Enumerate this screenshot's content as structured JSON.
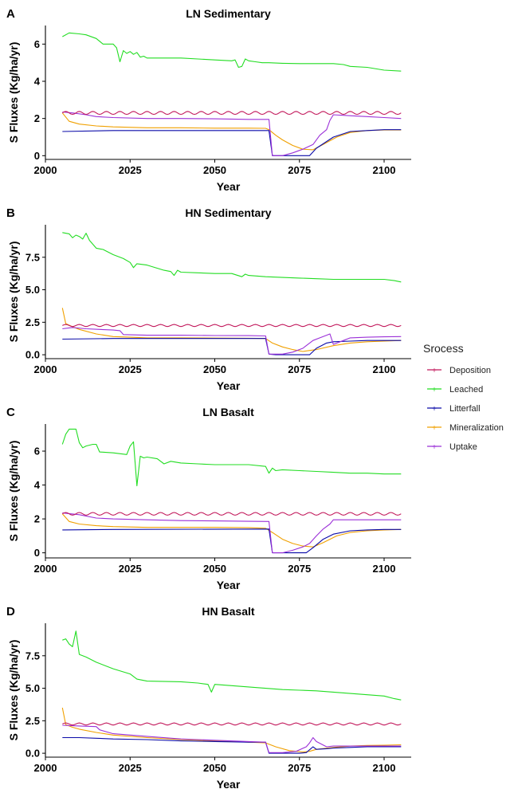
{
  "legend": {
    "title": "Srocess",
    "items": [
      {
        "name": "Deposition",
        "color": "#c2185b"
      },
      {
        "name": "Leached",
        "color": "#22dd22"
      },
      {
        "name": "Litterfall",
        "color": "#0a0aa8"
      },
      {
        "name": "Mineralization",
        "color": "#f0a000"
      },
      {
        "name": "Uptake",
        "color": "#9b30d8"
      }
    ]
  },
  "chart_data": [
    {
      "type": "line",
      "panel": "A",
      "title": "LN Sedimentary",
      "xlabel": "Year",
      "ylabel": "S Fluxes (Kg/ha/yr)",
      "xlim": [
        2000,
        2108
      ],
      "ylim": [
        -0.2,
        7.0
      ],
      "xticks": [
        2000,
        2025,
        2050,
        2075,
        2100
      ],
      "yticks": [
        0,
        2,
        4,
        6
      ],
      "ytick_labels": [
        "0",
        "2",
        "4",
        "6"
      ],
      "series": [
        {
          "name": "Deposition",
          "x": [
            2005,
            2105
          ],
          "y": [
            2.3,
            2.3
          ],
          "wiggle": 0.08
        },
        {
          "name": "Leached",
          "x": [
            2005,
            2007,
            2010,
            2012,
            2015,
            2017,
            2020,
            2021,
            2022,
            2023,
            2024,
            2025,
            2026,
            2027,
            2028,
            2029,
            2030,
            2033,
            2036,
            2040,
            2045,
            2050,
            2055,
            2056,
            2057,
            2058,
            2059,
            2060,
            2062,
            2064,
            2066,
            2068,
            2070,
            2075,
            2080,
            2085,
            2088,
            2090,
            2095,
            2100,
            2105
          ],
          "y": [
            6.4,
            6.6,
            6.55,
            6.5,
            6.3,
            6.0,
            6.0,
            5.8,
            5.05,
            5.65,
            5.5,
            5.6,
            5.45,
            5.55,
            5.3,
            5.35,
            5.25,
            5.25,
            5.25,
            5.25,
            5.2,
            5.15,
            5.1,
            5.15,
            4.75,
            4.8,
            5.2,
            5.1,
            5.05,
            5.0,
            5.0,
            4.98,
            4.97,
            4.95,
            4.95,
            4.95,
            4.9,
            4.8,
            4.75,
            4.6,
            4.55
          ]
        },
        {
          "name": "Litterfall",
          "x": [
            2005,
            2020,
            2066,
            2067,
            2078,
            2080,
            2085,
            2090,
            2095,
            2100,
            2105
          ],
          "y": [
            1.3,
            1.35,
            1.35,
            0.0,
            0.0,
            0.4,
            1.0,
            1.3,
            1.35,
            1.4,
            1.4
          ]
        },
        {
          "name": "Mineralization",
          "x": [
            2005,
            2007,
            2010,
            2015,
            2020,
            2030,
            2040,
            2050,
            2060,
            2065,
            2066,
            2068,
            2070,
            2073,
            2076,
            2079,
            2082,
            2086,
            2090,
            2095,
            2100,
            2105
          ],
          "y": [
            2.3,
            1.85,
            1.7,
            1.6,
            1.55,
            1.5,
            1.5,
            1.48,
            1.48,
            1.47,
            1.4,
            1.1,
            0.85,
            0.55,
            0.35,
            0.32,
            0.6,
            1.0,
            1.25,
            1.35,
            1.38,
            1.38
          ]
        },
        {
          "name": "Uptake",
          "x": [
            2005,
            2008,
            2012,
            2015,
            2020,
            2030,
            2040,
            2050,
            2060,
            2066,
            2067,
            2070,
            2073,
            2076,
            2079,
            2081,
            2083,
            2084,
            2085,
            2090,
            2095,
            2100,
            2105
          ],
          "y": [
            2.35,
            2.3,
            2.2,
            2.1,
            2.05,
            2.0,
            2.0,
            1.98,
            1.95,
            1.95,
            0.0,
            0.0,
            0.15,
            0.35,
            0.6,
            1.1,
            1.4,
            1.9,
            2.2,
            2.15,
            2.1,
            2.05,
            2.0
          ]
        }
      ]
    },
    {
      "type": "line",
      "panel": "B",
      "title": "HN Sedimentary",
      "xlabel": "Year",
      "ylabel": "S Fluxes (Kg/ha/yr)",
      "xlim": [
        2000,
        2108
      ],
      "ylim": [
        -0.3,
        10.0
      ],
      "xticks": [
        2000,
        2025,
        2050,
        2075,
        2100
      ],
      "yticks": [
        0,
        2.5,
        5,
        7.5
      ],
      "ytick_labels": [
        "0.0",
        "2.5",
        "5.0",
        "7.5"
      ],
      "series": [
        {
          "name": "Deposition",
          "x": [
            2005,
            2105
          ],
          "y": [
            2.25,
            2.25
          ],
          "wiggle": 0.08
        },
        {
          "name": "Leached",
          "x": [
            2005,
            2007,
            2008,
            2009,
            2010,
            2011,
            2012,
            2013,
            2015,
            2017,
            2020,
            2023,
            2025,
            2026,
            2027,
            2030,
            2035,
            2037,
            2038,
            2039,
            2040,
            2045,
            2050,
            2055,
            2058,
            2059,
            2060,
            2065,
            2070,
            2075,
            2080,
            2085,
            2090,
            2095,
            2100,
            2103,
            2105
          ],
          "y": [
            9.4,
            9.3,
            9.0,
            9.2,
            9.1,
            8.9,
            9.35,
            8.8,
            8.2,
            8.1,
            7.7,
            7.4,
            7.1,
            6.7,
            7.0,
            6.9,
            6.5,
            6.4,
            6.1,
            6.5,
            6.35,
            6.3,
            6.25,
            6.25,
            6.0,
            6.2,
            6.1,
            6.0,
            5.95,
            5.9,
            5.85,
            5.8,
            5.8,
            5.8,
            5.8,
            5.7,
            5.6
          ]
        },
        {
          "name": "Litterfall",
          "x": [
            2005,
            2020,
            2065,
            2066,
            2068,
            2078,
            2080,
            2083,
            2085,
            2090,
            2095,
            2100,
            2105
          ],
          "y": [
            1.2,
            1.25,
            1.25,
            0.05,
            0.0,
            0.0,
            0.5,
            0.9,
            1.0,
            1.05,
            1.1,
            1.1,
            1.1
          ]
        },
        {
          "name": "Mineralization",
          "x": [
            2005,
            2006,
            2008,
            2010,
            2015,
            2020,
            2025,
            2030,
            2040,
            2050,
            2060,
            2065,
            2067,
            2070,
            2073,
            2076,
            2080,
            2085,
            2090,
            2095,
            2100,
            2105
          ],
          "y": [
            3.6,
            2.4,
            2.15,
            1.95,
            1.6,
            1.4,
            1.35,
            1.3,
            1.3,
            1.28,
            1.27,
            1.25,
            0.9,
            0.6,
            0.4,
            0.25,
            0.4,
            0.7,
            0.9,
            1.0,
            1.05,
            1.1
          ]
        },
        {
          "name": "Uptake",
          "x": [
            2005,
            2008,
            2012,
            2016,
            2020,
            2022,
            2023,
            2030,
            2040,
            2050,
            2060,
            2065,
            2066,
            2070,
            2073,
            2076,
            2079,
            2081,
            2083,
            2084,
            2085,
            2088,
            2090,
            2095,
            2100,
            2105
          ],
          "y": [
            2.0,
            2.1,
            2.0,
            1.95,
            1.9,
            1.85,
            1.55,
            1.5,
            1.5,
            1.48,
            1.47,
            1.45,
            0.05,
            0.05,
            0.2,
            0.5,
            1.1,
            1.3,
            1.5,
            1.6,
            0.8,
            1.1,
            1.3,
            1.35,
            1.38,
            1.4
          ]
        }
      ]
    },
    {
      "type": "line",
      "panel": "C",
      "title": "LN Basalt",
      "xlabel": "Year",
      "ylabel": "S Fluxes (Kg/ha/yr)",
      "xlim": [
        2000,
        2108
      ],
      "ylim": [
        -0.3,
        7.6
      ],
      "xticks": [
        2000,
        2025,
        2050,
        2075,
        2100
      ],
      "yticks": [
        0,
        2,
        4,
        6
      ],
      "ytick_labels": [
        "0",
        "2",
        "4",
        "6"
      ],
      "series": [
        {
          "name": "Deposition",
          "x": [
            2005,
            2105
          ],
          "y": [
            2.3,
            2.3
          ],
          "wiggle": 0.08
        },
        {
          "name": "Leached",
          "x": [
            2005,
            2006,
            2007,
            2009,
            2010,
            2011,
            2012,
            2014,
            2015,
            2016,
            2020,
            2024,
            2025,
            2026,
            2027,
            2028,
            2029,
            2030,
            2033,
            2035,
            2037,
            2040,
            2045,
            2050,
            2055,
            2060,
            2065,
            2066,
            2067,
            2068,
            2070,
            2075,
            2080,
            2085,
            2090,
            2095,
            2100,
            2105
          ],
          "y": [
            6.4,
            7.0,
            7.3,
            7.3,
            6.5,
            6.2,
            6.3,
            6.4,
            6.4,
            5.95,
            5.9,
            5.8,
            6.3,
            6.55,
            3.95,
            5.7,
            5.6,
            5.65,
            5.55,
            5.25,
            5.4,
            5.3,
            5.25,
            5.2,
            5.2,
            5.2,
            5.1,
            4.7,
            5.0,
            4.85,
            4.9,
            4.85,
            4.8,
            4.75,
            4.7,
            4.7,
            4.65,
            4.65
          ]
        },
        {
          "name": "Litterfall",
          "x": [
            2005,
            2020,
            2066,
            2067,
            2077,
            2079,
            2082,
            2085,
            2090,
            2095,
            2100,
            2105
          ],
          "y": [
            1.35,
            1.38,
            1.4,
            0.0,
            0.0,
            0.3,
            0.8,
            1.1,
            1.3,
            1.35,
            1.38,
            1.38
          ]
        },
        {
          "name": "Mineralization",
          "x": [
            2005,
            2007,
            2010,
            2015,
            2020,
            2030,
            2040,
            2050,
            2060,
            2065,
            2067,
            2070,
            2073,
            2076,
            2079,
            2082,
            2086,
            2090,
            2095,
            2100,
            2105
          ],
          "y": [
            2.3,
            1.85,
            1.7,
            1.6,
            1.55,
            1.5,
            1.5,
            1.5,
            1.48,
            1.45,
            1.2,
            0.8,
            0.55,
            0.4,
            0.35,
            0.6,
            1.0,
            1.2,
            1.3,
            1.35,
            1.38
          ]
        },
        {
          "name": "Uptake",
          "x": [
            2005,
            2010,
            2015,
            2020,
            2030,
            2040,
            2050,
            2060,
            2066,
            2067,
            2070,
            2073,
            2076,
            2078,
            2080,
            2082,
            2084,
            2085,
            2090,
            2095,
            2100,
            2105
          ],
          "y": [
            2.35,
            2.25,
            2.05,
            2.0,
            1.95,
            1.9,
            1.88,
            1.86,
            1.85,
            0.0,
            0.0,
            0.15,
            0.35,
            0.55,
            1.0,
            1.4,
            1.7,
            1.95,
            1.95,
            1.95,
            1.95,
            1.95
          ]
        }
      ]
    },
    {
      "type": "line",
      "panel": "D",
      "title": "HN Basalt",
      "xlabel": "Year",
      "ylabel": "S Fluxes (Kg/ha/yr)",
      "xlim": [
        2000,
        2108
      ],
      "ylim": [
        -0.3,
        10.0
      ],
      "xticks": [
        2000,
        2025,
        2050,
        2075,
        2100
      ],
      "yticks": [
        0,
        2.5,
        5,
        7.5
      ],
      "ytick_labels": [
        "0.0",
        "2.5",
        "5.0",
        "7.5"
      ],
      "series": [
        {
          "name": "Deposition",
          "x": [
            2005,
            2105
          ],
          "y": [
            2.25,
            2.25
          ],
          "wiggle": 0.08
        },
        {
          "name": "Leached",
          "x": [
            2005,
            2006,
            2007,
            2008,
            2009,
            2010,
            2012,
            2015,
            2020,
            2025,
            2027,
            2030,
            2040,
            2045,
            2048,
            2049,
            2050,
            2055,
            2060,
            2065,
            2070,
            2075,
            2080,
            2085,
            2090,
            2095,
            2100,
            2103,
            2105
          ],
          "y": [
            8.7,
            8.8,
            8.4,
            8.2,
            9.4,
            7.6,
            7.4,
            7.0,
            6.5,
            6.1,
            5.7,
            5.55,
            5.5,
            5.4,
            5.3,
            4.7,
            5.3,
            5.2,
            5.1,
            5.0,
            4.9,
            4.85,
            4.8,
            4.7,
            4.6,
            4.5,
            4.4,
            4.2,
            4.1
          ]
        },
        {
          "name": "Litterfall",
          "x": [
            2005,
            2010,
            2015,
            2020,
            2030,
            2040,
            2050,
            2060,
            2065,
            2066,
            2070,
            2075,
            2077,
            2079,
            2080,
            2083,
            2085,
            2090,
            2095,
            2100,
            2105
          ],
          "y": [
            1.2,
            1.2,
            1.15,
            1.1,
            1.05,
            0.95,
            0.9,
            0.85,
            0.85,
            0.0,
            0.0,
            0.0,
            0.05,
            0.5,
            0.3,
            0.35,
            0.4,
            0.45,
            0.5,
            0.5,
            0.5
          ]
        },
        {
          "name": "Mineralization",
          "x": [
            2005,
            2006,
            2008,
            2010,
            2015,
            2020,
            2030,
            2040,
            2050,
            2060,
            2065,
            2068,
            2072,
            2076,
            2078,
            2080,
            2085,
            2090,
            2095,
            2100,
            2105
          ],
          "y": [
            3.5,
            2.2,
            2.0,
            1.85,
            1.6,
            1.4,
            1.2,
            1.05,
            0.95,
            0.85,
            0.8,
            0.5,
            0.2,
            0.1,
            0.15,
            0.3,
            0.45,
            0.55,
            0.6,
            0.62,
            0.65
          ]
        },
        {
          "name": "Uptake",
          "x": [
            2005,
            2010,
            2015,
            2016,
            2020,
            2030,
            2040,
            2050,
            2060,
            2065,
            2066,
            2070,
            2074,
            2077,
            2078,
            2079,
            2080,
            2083,
            2085,
            2090,
            2095,
            2100,
            2105
          ],
          "y": [
            2.15,
            2.1,
            2.05,
            1.8,
            1.5,
            1.3,
            1.1,
            1.0,
            0.9,
            0.85,
            0.05,
            0.05,
            0.15,
            0.5,
            0.8,
            1.2,
            0.9,
            0.5,
            0.55,
            0.55,
            0.55,
            0.55,
            0.55
          ]
        }
      ]
    }
  ]
}
